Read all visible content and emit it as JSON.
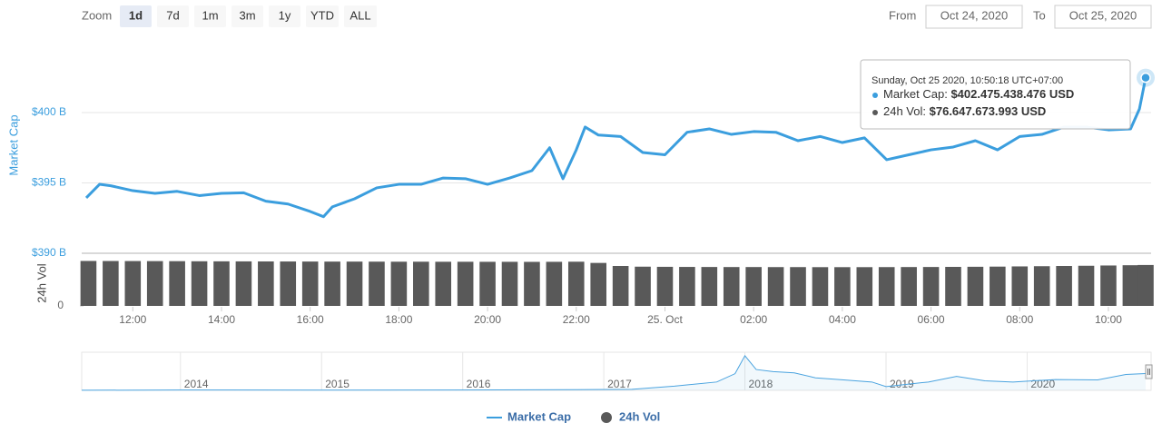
{
  "controls": {
    "zoom_label": "Zoom",
    "zoom_buttons": [
      "1d",
      "7d",
      "1m",
      "3m",
      "1y",
      "YTD",
      "ALL"
    ],
    "selected": 0,
    "from_label": "From",
    "from": "Oct 24, 2020",
    "to_label": "To",
    "to": "Oct 25, 2020"
  },
  "tooltip": {
    "header": "Sunday, Oct 25 2020, 10:50:18 UTC+07:00",
    "rows": [
      {
        "label": "Market Cap:",
        "value": "$402.475.438.476 USD"
      },
      {
        "label": "24h Vol:",
        "value": "$76.647.673.993 USD"
      }
    ]
  },
  "chart_data": [
    {
      "type": "line",
      "ylabel": "Market Cap",
      "x": [
        10.95,
        11.25,
        11.5,
        12,
        12.5,
        13,
        13.5,
        14,
        14.5,
        15,
        15.5,
        16,
        16.3,
        16.5,
        17,
        17.5,
        18,
        18.5,
        19,
        19.5,
        20,
        20.5,
        21,
        21.4,
        21.7,
        22,
        22.2,
        22.5,
        23,
        23.5,
        24,
        24.5,
        25,
        25.5,
        26,
        26.5,
        27,
        27.5,
        28,
        28.5,
        29,
        29.5,
        30,
        30.5,
        31,
        31.5,
        32,
        32.5,
        33,
        33.5,
        34,
        34.5,
        34.7,
        34.84
      ],
      "series": [
        {
          "name": "Market Cap",
          "color": "#3b9ede",
          "values": [
            393.94,
            394.9,
            394.8,
            394.45,
            394.26,
            394.4,
            394.1,
            394.26,
            394.3,
            393.7,
            393.5,
            392.97,
            392.6,
            393.3,
            393.87,
            394.65,
            394.9,
            394.9,
            395.35,
            395.3,
            394.9,
            395.35,
            395.87,
            397.5,
            395.3,
            397.35,
            398.97,
            398.4,
            398.3,
            397.16,
            397.0,
            398.6,
            398.84,
            398.45,
            398.65,
            398.6,
            398.0,
            398.3,
            397.87,
            398.2,
            396.65,
            397.0,
            397.35,
            397.55,
            398.0,
            397.35,
            398.3,
            398.45,
            398.97,
            398.97,
            398.77,
            398.84,
            400.26,
            402.475438476
          ]
        }
      ],
      "xlim": [
        10.95,
        34.84
      ],
      "ylim": [
        390,
        404
      ],
      "yticks": [
        {
          "value": 390,
          "label": "$390 B"
        },
        {
          "value": 395,
          "label": "$395 B"
        },
        {
          "value": 400,
          "label": "$400 B"
        }
      ],
      "grid": true
    },
    {
      "type": "bar",
      "ylabel": "24h Vol",
      "x": [
        11,
        11.5,
        12,
        12.5,
        13,
        13.5,
        14,
        14.5,
        15,
        15.5,
        16,
        16.5,
        17,
        17.5,
        18,
        18.5,
        19,
        19.5,
        20,
        20.5,
        21,
        21.5,
        22,
        22.5,
        23,
        23.5,
        24,
        24.5,
        25,
        25.5,
        26,
        26.5,
        27,
        27.5,
        28,
        28.5,
        29,
        29.5,
        30,
        30.5,
        31,
        31.5,
        32,
        32.5,
        33,
        33.5,
        34,
        34.5,
        34.84
      ],
      "series": [
        {
          "name": "24h Vol",
          "color": "#595959",
          "values": [
            84.2,
            84.1,
            84.0,
            83.9,
            83.8,
            83.6,
            83.5,
            83.4,
            83.3,
            83.2,
            83.1,
            83.0,
            83.0,
            82.9,
            82.8,
            82.8,
            82.7,
            82.7,
            82.6,
            82.6,
            82.5,
            82.6,
            82.8,
            80.5,
            74.8,
            73.5,
            73.2,
            73.0,
            72.9,
            72.8,
            72.8,
            72.7,
            72.7,
            72.6,
            72.6,
            72.6,
            72.7,
            72.8,
            72.9,
            73.1,
            73.3,
            73.6,
            74.0,
            74.4,
            74.8,
            75.2,
            75.7,
            76.2,
            76.647673993
          ]
        }
      ],
      "xlim": [
        10.95,
        34.84
      ],
      "ylim": [
        0,
        85
      ],
      "yticks": [
        0
      ],
      "xticks": [
        {
          "value": 12,
          "label": "12:00"
        },
        {
          "value": 14,
          "label": "14:00"
        },
        {
          "value": 16,
          "label": "16:00"
        },
        {
          "value": 18,
          "label": "18:00"
        },
        {
          "value": 20,
          "label": "20:00"
        },
        {
          "value": 22,
          "label": "22:00"
        },
        {
          "value": 24,
          "label": "25. Oct"
        },
        {
          "value": 26,
          "label": "02:00"
        },
        {
          "value": 28,
          "label": "04:00"
        },
        {
          "value": 30,
          "label": "06:00"
        },
        {
          "value": 32,
          "label": "08:00"
        },
        {
          "value": 34,
          "label": "10:00"
        }
      ]
    },
    {
      "type": "area",
      "x": [
        2013.3,
        2014,
        2015,
        2016,
        2016.8,
        2017.2,
        2017.5,
        2017.8,
        2017.93,
        2018.0,
        2018.08,
        2018.2,
        2018.35,
        2018.5,
        2018.7,
        2018.9,
        2019.0,
        2019.3,
        2019.5,
        2019.7,
        2019.9,
        2020.2,
        2020.5,
        2020.7,
        2020.84
      ],
      "series": [
        {
          "color": "#4aa3df",
          "values": [
            2,
            8,
            6,
            7,
            15,
            25,
            100,
            200,
            400,
            830,
            500,
            450,
            420,
            300,
            250,
            200,
            90,
            200,
            336,
            230,
            200,
            260,
            250,
            380,
            402.48
          ]
        }
      ],
      "xlim": [
        2013.3,
        2020.84
      ],
      "ylim": [
        0,
        850
      ],
      "xticks": [
        2014,
        2015,
        2016,
        2017,
        2018,
        2019,
        2020
      ]
    }
  ]
}
